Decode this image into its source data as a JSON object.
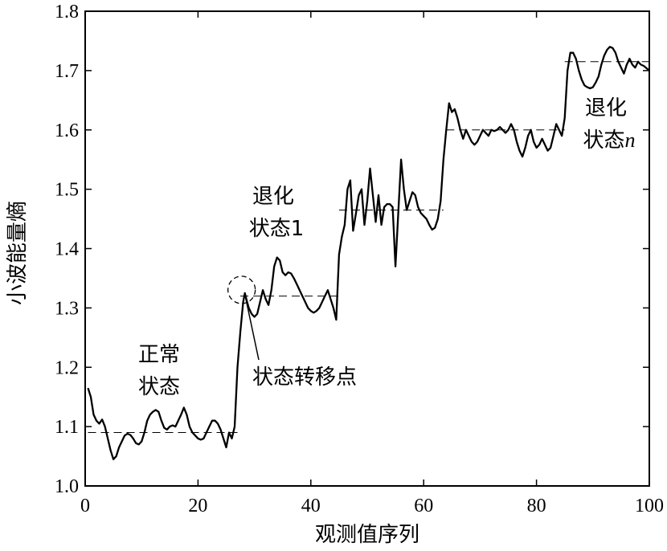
{
  "chart_data": {
    "type": "line",
    "title": "",
    "xlabel": "观测值序列",
    "ylabel": "小波能量熵",
    "xlim": [
      0,
      100
    ],
    "ylim": [
      1.0,
      1.8
    ],
    "xticks": [
      "0",
      "20",
      "40",
      "60",
      "80",
      "100"
    ],
    "yticks": [
      "1.0",
      "1.1",
      "1.2",
      "1.3",
      "1.4",
      "1.5",
      "1.6",
      "1.7",
      "1.8"
    ],
    "grid": false,
    "legend": "none",
    "series": [
      {
        "values": [
          [
            0.5,
            1.165
          ],
          [
            1,
            1.15
          ],
          [
            1.5,
            1.12
          ],
          [
            2,
            1.11
          ],
          [
            2.5,
            1.105
          ],
          [
            3,
            1.112
          ],
          [
            3.5,
            1.1
          ],
          [
            4,
            1.08
          ],
          [
            4.5,
            1.06
          ],
          [
            5,
            1.045
          ],
          [
            5.5,
            1.05
          ],
          [
            6,
            1.065
          ],
          [
            6.5,
            1.075
          ],
          [
            7,
            1.085
          ],
          [
            7.5,
            1.088
          ],
          [
            8,
            1.086
          ],
          [
            8.5,
            1.08
          ],
          [
            9,
            1.072
          ],
          [
            9.5,
            1.07
          ],
          [
            10,
            1.075
          ],
          [
            10.5,
            1.09
          ],
          [
            11,
            1.11
          ],
          [
            11.5,
            1.12
          ],
          [
            12,
            1.125
          ],
          [
            12.5,
            1.128
          ],
          [
            13,
            1.125
          ],
          [
            13.5,
            1.11
          ],
          [
            14,
            1.098
          ],
          [
            14.5,
            1.095
          ],
          [
            15,
            1.1
          ],
          [
            15.5,
            1.102
          ],
          [
            16,
            1.1
          ],
          [
            16.5,
            1.11
          ],
          [
            17,
            1.12
          ],
          [
            17.5,
            1.132
          ],
          [
            18,
            1.12
          ],
          [
            18.5,
            1.1
          ],
          [
            19,
            1.09
          ],
          [
            19.5,
            1.085
          ],
          [
            20,
            1.08
          ],
          [
            20.5,
            1.078
          ],
          [
            21,
            1.08
          ],
          [
            21.5,
            1.09
          ],
          [
            22,
            1.1
          ],
          [
            22.5,
            1.11
          ],
          [
            23,
            1.11
          ],
          [
            23.5,
            1.105
          ],
          [
            24,
            1.095
          ],
          [
            24.5,
            1.08
          ],
          [
            25,
            1.065
          ],
          [
            25.5,
            1.09
          ],
          [
            26,
            1.08
          ],
          [
            26.5,
            1.1
          ],
          [
            27,
            1.2
          ],
          [
            27.5,
            1.26
          ],
          [
            28,
            1.31
          ],
          [
            28.3,
            1.325
          ],
          [
            28.7,
            1.31
          ],
          [
            29,
            1.3
          ],
          [
            29.5,
            1.29
          ],
          [
            30,
            1.285
          ],
          [
            30.5,
            1.29
          ],
          [
            31,
            1.31
          ],
          [
            31.5,
            1.33
          ],
          [
            32,
            1.315
          ],
          [
            32.5,
            1.305
          ],
          [
            33,
            1.33
          ],
          [
            33.5,
            1.37
          ],
          [
            34,
            1.385
          ],
          [
            34.5,
            1.38
          ],
          [
            35,
            1.36
          ],
          [
            35.5,
            1.355
          ],
          [
            36,
            1.36
          ],
          [
            36.5,
            1.358
          ],
          [
            37,
            1.35
          ],
          [
            37.5,
            1.34
          ],
          [
            38,
            1.33
          ],
          [
            38.5,
            1.32
          ],
          [
            39,
            1.31
          ],
          [
            39.5,
            1.3
          ],
          [
            40,
            1.295
          ],
          [
            40.5,
            1.292
          ],
          [
            41,
            1.295
          ],
          [
            41.5,
            1.3
          ],
          [
            42,
            1.31
          ],
          [
            42.5,
            1.32
          ],
          [
            43,
            1.33
          ],
          [
            43.5,
            1.315
          ],
          [
            44,
            1.3
          ],
          [
            44.5,
            1.28
          ],
          [
            45,
            1.39
          ],
          [
            45.5,
            1.42
          ],
          [
            46,
            1.44
          ],
          [
            46.5,
            1.5
          ],
          [
            47,
            1.515
          ],
          [
            47.5,
            1.43
          ],
          [
            48,
            1.46
          ],
          [
            48.5,
            1.49
          ],
          [
            49,
            1.5
          ],
          [
            49.5,
            1.44
          ],
          [
            50,
            1.48
          ],
          [
            50.5,
            1.535
          ],
          [
            51,
            1.49
          ],
          [
            51.5,
            1.445
          ],
          [
            52,
            1.49
          ],
          [
            52.5,
            1.44
          ],
          [
            53,
            1.47
          ],
          [
            53.5,
            1.475
          ],
          [
            54,
            1.475
          ],
          [
            54.5,
            1.47
          ],
          [
            55,
            1.37
          ],
          [
            55.5,
            1.46
          ],
          [
            56,
            1.55
          ],
          [
            56.5,
            1.5
          ],
          [
            57,
            1.465
          ],
          [
            57.5,
            1.48
          ],
          [
            58,
            1.495
          ],
          [
            58.5,
            1.49
          ],
          [
            59,
            1.47
          ],
          [
            59.5,
            1.46
          ],
          [
            60,
            1.455
          ],
          [
            60.5,
            1.45
          ],
          [
            61,
            1.44
          ],
          [
            61.5,
            1.432
          ],
          [
            62,
            1.435
          ],
          [
            62.5,
            1.45
          ],
          [
            63,
            1.48
          ],
          [
            63.5,
            1.55
          ],
          [
            64,
            1.6
          ],
          [
            64.5,
            1.645
          ],
          [
            65,
            1.63
          ],
          [
            65.5,
            1.635
          ],
          [
            66,
            1.62
          ],
          [
            66.5,
            1.6
          ],
          [
            67,
            1.585
          ],
          [
            67.5,
            1.6
          ],
          [
            68,
            1.59
          ],
          [
            68.5,
            1.58
          ],
          [
            69,
            1.575
          ],
          [
            69.5,
            1.58
          ],
          [
            70,
            1.59
          ],
          [
            70.5,
            1.6
          ],
          [
            71,
            1.595
          ],
          [
            71.5,
            1.59
          ],
          [
            72,
            1.6
          ],
          [
            72.5,
            1.598
          ],
          [
            73,
            1.6
          ],
          [
            73.5,
            1.605
          ],
          [
            74,
            1.6
          ],
          [
            74.5,
            1.595
          ],
          [
            75,
            1.6
          ],
          [
            75.5,
            1.61
          ],
          [
            76,
            1.6
          ],
          [
            76.5,
            1.58
          ],
          [
            77,
            1.565
          ],
          [
            77.5,
            1.555
          ],
          [
            78,
            1.57
          ],
          [
            78.5,
            1.59
          ],
          [
            79,
            1.6
          ],
          [
            79.5,
            1.58
          ],
          [
            80,
            1.57
          ],
          [
            80.5,
            1.575
          ],
          [
            81,
            1.585
          ],
          [
            81.5,
            1.575
          ],
          [
            82,
            1.565
          ],
          [
            82.5,
            1.57
          ],
          [
            83,
            1.59
          ],
          [
            83.5,
            1.61
          ],
          [
            84,
            1.6
          ],
          [
            84.5,
            1.59
          ],
          [
            85,
            1.62
          ],
          [
            85.5,
            1.7
          ],
          [
            86,
            1.73
          ],
          [
            86.5,
            1.73
          ],
          [
            87,
            1.72
          ],
          [
            87.5,
            1.7
          ],
          [
            88,
            1.685
          ],
          [
            88.5,
            1.675
          ],
          [
            89,
            1.672
          ],
          [
            89.5,
            1.67
          ],
          [
            90,
            1.672
          ],
          [
            90.5,
            1.68
          ],
          [
            91,
            1.69
          ],
          [
            91.5,
            1.71
          ],
          [
            92,
            1.725
          ],
          [
            92.5,
            1.735
          ],
          [
            93,
            1.74
          ],
          [
            93.5,
            1.738
          ],
          [
            94,
            1.73
          ],
          [
            94.5,
            1.715
          ],
          [
            95,
            1.705
          ],
          [
            95.5,
            1.695
          ],
          [
            96,
            1.71
          ],
          [
            96.5,
            1.72
          ],
          [
            97,
            1.71
          ],
          [
            97.5,
            1.705
          ],
          [
            98,
            1.715
          ],
          [
            98.5,
            1.71
          ],
          [
            99,
            1.708
          ],
          [
            100,
            1.7
          ]
        ]
      }
    ],
    "mean_levels": [
      {
        "y": 1.09,
        "x": [
          0.5,
          27
        ]
      },
      {
        "y": 1.32,
        "x": [
          27.5,
          45
        ]
      },
      {
        "y": 1.465,
        "x": [
          45,
          63.5
        ]
      },
      {
        "y": 1.6,
        "x": [
          64,
          85
        ]
      },
      {
        "y": 1.715,
        "x": [
          85,
          100
        ]
      }
    ],
    "annotations": {
      "normal_line1": "正常",
      "normal_line2": "状态",
      "deg1_line1": "退化",
      "deg1_line2": "状态1",
      "degn_line1": "退化",
      "degn_line2_prefix": "状态",
      "degn_line2_suffix": "n",
      "transition": "状态转移点"
    },
    "transition_point": {
      "x": 28.3,
      "y": 1.325
    }
  }
}
